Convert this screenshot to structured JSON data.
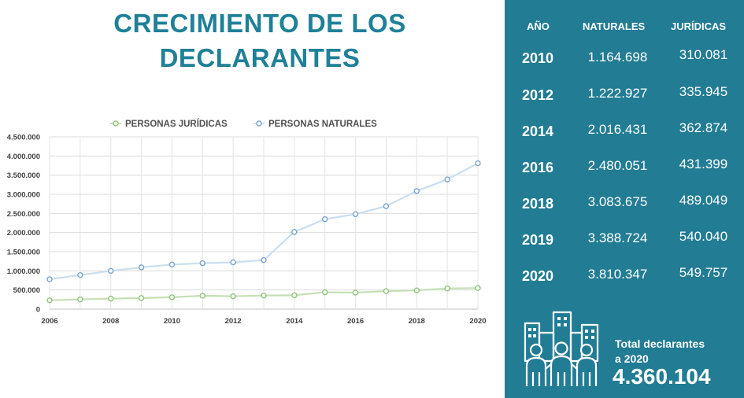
{
  "title_line1": "CRECIMIENTO DE LOS",
  "title_line2": "DECLARANTES",
  "table": {
    "headers": [
      "AÑO",
      "NATURALES",
      "JURÍDICAS"
    ],
    "rows": [
      {
        "year": "2010",
        "naturales": "1.164.698",
        "juridicas": "310.081"
      },
      {
        "year": "2012",
        "naturales": "1.222.927",
        "juridicas": "335.945"
      },
      {
        "year": "2014",
        "naturales": "2.016.431",
        "juridicas": "362.874"
      },
      {
        "year": "2016",
        "naturales": "2.480.051",
        "juridicas": "431.399"
      },
      {
        "year": "2018",
        "naturales": "3.083.675",
        "juridicas": "489.049"
      },
      {
        "year": "2019",
        "naturales": "3.388.724",
        "juridicas": "540.040"
      },
      {
        "year": "2020",
        "naturales": "3.810.347",
        "juridicas": "549.757"
      }
    ]
  },
  "total": {
    "label_line1": "Total declarantes",
    "label_line2": "a 2020",
    "value": "4.360.104",
    "icon": "people-city-icon"
  },
  "colors": {
    "accent": "#1f8098",
    "panel": "#217c94",
    "juridicas": "#8fc67a",
    "naturales": "#7ba3cc",
    "naturales_line": "#c9dff0",
    "juridicas_line": "#c5e0b4"
  },
  "chart_data": {
    "type": "line",
    "x": [
      2006,
      2007,
      2008,
      2009,
      2010,
      2011,
      2012,
      2013,
      2014,
      2015,
      2016,
      2017,
      2018,
      2019,
      2020
    ],
    "x_ticks": [
      "2006",
      "2008",
      "2010",
      "2012",
      "2014",
      "2016",
      "2018",
      "2020"
    ],
    "y_ticks": [
      "0",
      "500.000",
      "1.000.000",
      "1.500.000",
      "2.000.000",
      "2.500.000",
      "3.000.000",
      "3.500.000",
      "4.000.000",
      "4.500.000"
    ],
    "ylim": [
      0,
      4500000
    ],
    "xlim": [
      2006,
      2020
    ],
    "grid": true,
    "legend_position": "top",
    "series": [
      {
        "name": "PERSONAS JURÍDICAS",
        "values": [
          230000,
          255000,
          275000,
          290000,
          310081,
          350000,
          335945,
          355000,
          362874,
          440000,
          431399,
          470000,
          489049,
          540040,
          549757
        ]
      },
      {
        "name": "PERSONAS NATURALES",
        "values": [
          780000,
          890000,
          1000000,
          1090000,
          1164698,
          1200000,
          1222927,
          1280000,
          2016431,
          2350000,
          2480051,
          2690000,
          3083675,
          3388724,
          3810347
        ]
      }
    ]
  }
}
